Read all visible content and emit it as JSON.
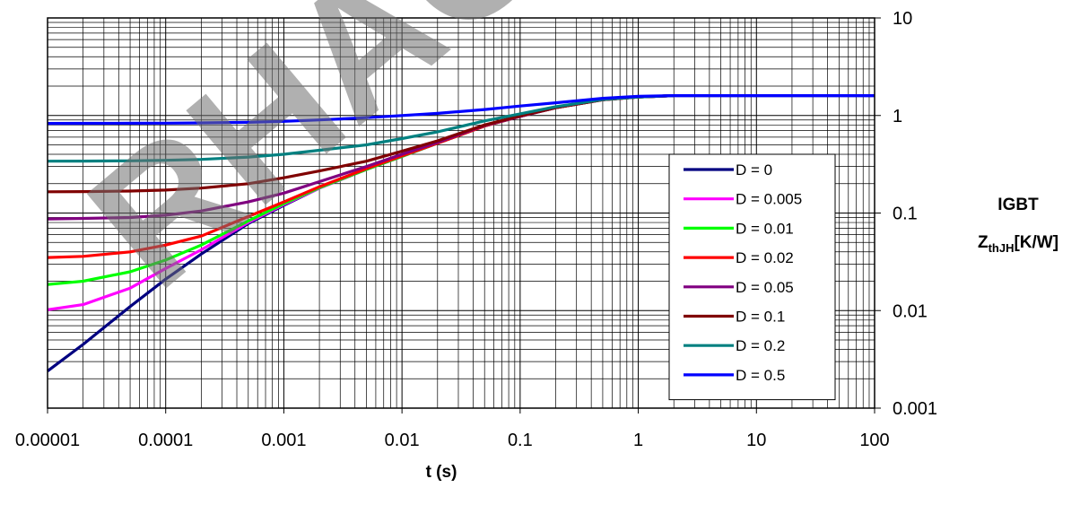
{
  "chart_data": {
    "type": "line",
    "title": "",
    "xlabel": "t (s)",
    "ylabel_line1": "IGBT",
    "ylabel_line2_main": "Z",
    "ylabel_line2_sub": "thJH",
    "ylabel_line2_unit": "[K/W]",
    "x_scale": "log",
    "y_scale": "log",
    "xlim": [
      1e-05,
      100
    ],
    "ylim": [
      0.001,
      10
    ],
    "y_axis_side": "right",
    "grid": true,
    "legend_position": "right",
    "x_ticks": [
      "0.00001",
      "0.0001",
      "0.001",
      "0.01",
      "0.1",
      "1",
      "10",
      "100"
    ],
    "y_ticks": [
      "10",
      "1",
      "0.1",
      "0.01",
      "0.001"
    ],
    "watermark": "RHAC",
    "series": [
      {
        "name": "D = 0",
        "color": "#000080",
        "x": [
          1e-05,
          2e-05,
          5e-05,
          0.0001,
          0.0002,
          0.0005,
          0.001,
          0.002,
          0.005,
          0.01,
          0.02,
          0.05,
          0.1,
          0.2,
          0.5,
          1,
          2,
          5,
          10,
          100
        ],
        "y": [
          0.0024,
          0.0045,
          0.011,
          0.021,
          0.038,
          0.078,
          0.12,
          0.18,
          0.28,
          0.38,
          0.52,
          0.78,
          0.98,
          1.2,
          1.45,
          1.55,
          1.6,
          1.6,
          1.6,
          1.6
        ]
      },
      {
        "name": "D = 0.005",
        "color": "#ff00ff",
        "x": [
          1e-05,
          2e-05,
          5e-05,
          0.0001,
          0.0002,
          0.0005,
          0.001,
          0.002,
          0.005,
          0.01,
          0.02,
          0.05,
          0.1,
          0.2,
          0.5,
          1,
          2
        ],
        "y": [
          0.0102,
          0.0115,
          0.017,
          0.027,
          0.042,
          0.08,
          0.122,
          0.18,
          0.28,
          0.38,
          0.52,
          0.78,
          0.98,
          1.2,
          1.45,
          1.55,
          1.6
        ]
      },
      {
        "name": "D = 0.01",
        "color": "#00ff00",
        "x": [
          1e-05,
          2e-05,
          5e-05,
          0.0001,
          0.0002,
          0.0005,
          0.001,
          0.002,
          0.005,
          0.01,
          0.02,
          0.05,
          0.1,
          0.2,
          0.5,
          1,
          2
        ],
        "y": [
          0.0185,
          0.02,
          0.025,
          0.033,
          0.047,
          0.083,
          0.125,
          0.182,
          0.28,
          0.38,
          0.52,
          0.78,
          0.98,
          1.2,
          1.45,
          1.55,
          1.6
        ]
      },
      {
        "name": "D = 0.02",
        "color": "#ff0000",
        "x": [
          1e-05,
          2e-05,
          5e-05,
          0.0001,
          0.0002,
          0.0005,
          0.001,
          0.002,
          0.005,
          0.01,
          0.02,
          0.05,
          0.1,
          0.2,
          0.5,
          1,
          2
        ],
        "y": [
          0.035,
          0.036,
          0.04,
          0.047,
          0.058,
          0.092,
          0.13,
          0.186,
          0.285,
          0.385,
          0.52,
          0.78,
          0.98,
          1.2,
          1.45,
          1.55,
          1.6
        ]
      },
      {
        "name": "D = 0.05",
        "color": "#800080",
        "x": [
          1e-05,
          2e-05,
          5e-05,
          0.0001,
          0.0002,
          0.0005,
          0.001,
          0.002,
          0.005,
          0.01,
          0.02,
          0.05,
          0.1,
          0.2,
          0.5,
          1,
          2
        ],
        "y": [
          0.087,
          0.088,
          0.09,
          0.095,
          0.105,
          0.13,
          0.16,
          0.21,
          0.3,
          0.4,
          0.53,
          0.79,
          0.98,
          1.2,
          1.45,
          1.55,
          1.6
        ]
      },
      {
        "name": "D = 0.1",
        "color": "#800000",
        "x": [
          1e-05,
          2e-05,
          5e-05,
          0.0001,
          0.0002,
          0.0005,
          0.001,
          0.002,
          0.005,
          0.01,
          0.02,
          0.05,
          0.1,
          0.2,
          0.5,
          1,
          2
        ],
        "y": [
          0.165,
          0.166,
          0.168,
          0.172,
          0.18,
          0.2,
          0.23,
          0.27,
          0.34,
          0.43,
          0.55,
          0.8,
          0.99,
          1.2,
          1.45,
          1.55,
          1.6
        ]
      },
      {
        "name": "D = 0.2",
        "color": "#008080",
        "x": [
          1e-05,
          2e-05,
          5e-05,
          0.0001,
          0.0002,
          0.0005,
          0.001,
          0.002,
          0.005,
          0.01,
          0.02,
          0.05,
          0.1,
          0.2,
          0.5,
          1,
          2
        ],
        "y": [
          0.34,
          0.341,
          0.343,
          0.347,
          0.355,
          0.375,
          0.4,
          0.44,
          0.5,
          0.58,
          0.68,
          0.88,
          1.04,
          1.23,
          1.46,
          1.55,
          1.6
        ]
      },
      {
        "name": "D = 0.5",
        "color": "#0000ff",
        "x": [
          1e-05,
          2e-05,
          5e-05,
          0.0001,
          0.0002,
          0.0005,
          0.001,
          0.002,
          0.005,
          0.01,
          0.02,
          0.05,
          0.1,
          0.2,
          0.5,
          1,
          2,
          5,
          10,
          100
        ],
        "y": [
          0.83,
          0.831,
          0.833,
          0.835,
          0.84,
          0.85,
          0.87,
          0.9,
          0.95,
          1.0,
          1.05,
          1.15,
          1.25,
          1.35,
          1.5,
          1.57,
          1.6,
          1.6,
          1.6,
          1.6
        ]
      }
    ]
  }
}
